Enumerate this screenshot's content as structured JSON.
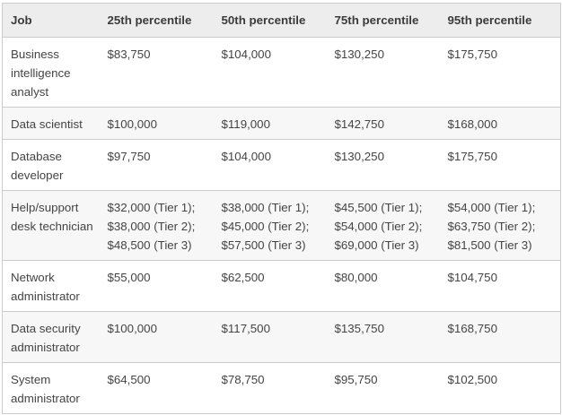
{
  "theme": {
    "page_bg": "#ffffff",
    "header_bg": "#ededed",
    "row_bg": "#ffffff",
    "row_alt_bg": "#f7f7f7",
    "border_color": "#cccccc",
    "header_text": "#3b3b3b",
    "body_text": "#444444"
  },
  "table": {
    "columns": [
      {
        "key": "job",
        "label": "Job"
      },
      {
        "key": "p25",
        "label": "25th percentile"
      },
      {
        "key": "p50",
        "label": "50th percentile"
      },
      {
        "key": "p75",
        "label": "75th percentile"
      },
      {
        "key": "p95",
        "label": "95th percentile"
      }
    ],
    "rows": [
      [
        "Business intelligence analyst",
        "$83,750",
        "$104,000",
        "$130,250",
        "$175,750"
      ],
      [
        "Data scientist",
        "$100,000",
        "$119,000",
        "$142,750",
        "$168,000"
      ],
      [
        "Database developer",
        "$97,750",
        "$104,000",
        "$130,250",
        "$175,750"
      ],
      [
        "Help/support desk technician",
        "$32,000 (Tier 1); $38,000 (Tier 2); $48,500 (Tier 3)",
        "$38,000 (Tier 1); $45,000 (Tier 2); $57,500 (Tier 3)",
        "$45,500 (Tier 1); $54,000 (Tier 2); $69,000 (Tier 3)",
        "$54,000 (Tier 1); $63,750 (Tier 2); $81,500 (Tier 3)"
      ],
      [
        "Network administrator",
        "$55,000",
        "$62,500",
        "$80,000",
        "$104,750"
      ],
      [
        "Data security administrator",
        "$100,000",
        "$117,500",
        "$135,750",
        "$168,750"
      ],
      [
        "System administrator",
        "$64,500",
        "$78,750",
        "$95,750",
        "$102,500"
      ]
    ]
  }
}
